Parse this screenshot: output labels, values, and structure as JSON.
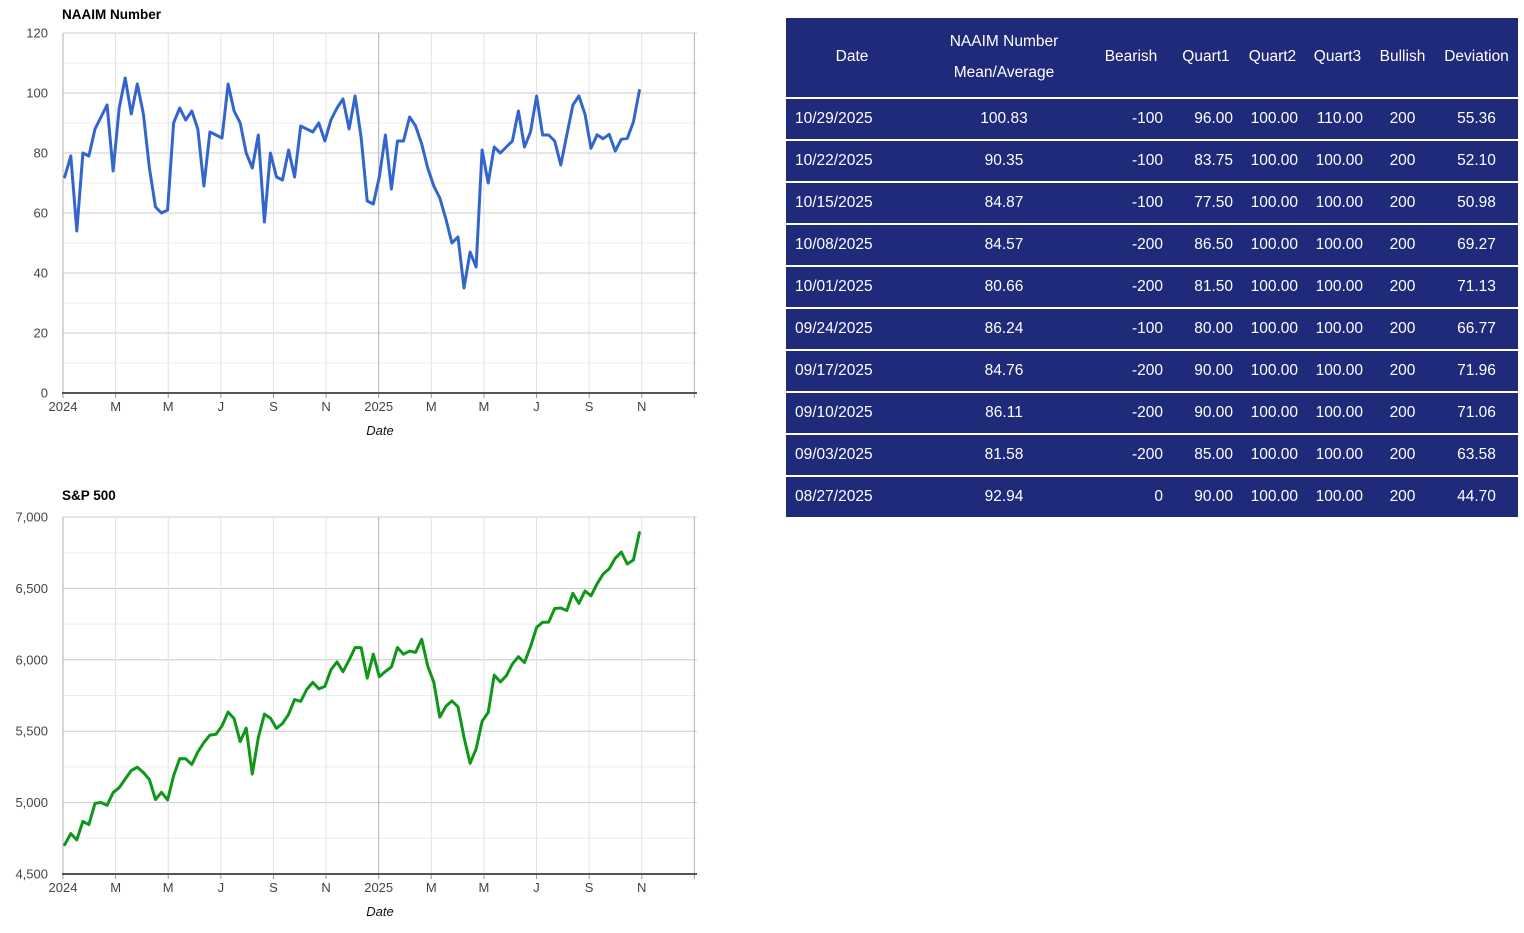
{
  "page": {
    "background": "#ffffff",
    "accent_navy": "#1f2a7a"
  },
  "chart_data": [
    {
      "type": "line",
      "title": "NAAIM Number",
      "xlabel": "Date",
      "line_color": "#3366cc",
      "ylim": [
        0,
        120
      ],
      "y_minor_step": 10,
      "y_ticks": [
        {
          "v": 0,
          "label": "0"
        },
        {
          "v": 20,
          "label": "20"
        },
        {
          "v": 40,
          "label": "40"
        },
        {
          "v": 60,
          "label": "60"
        },
        {
          "v": 80,
          "label": "80"
        },
        {
          "v": 100,
          "label": "100"
        },
        {
          "v": 120,
          "label": "120"
        }
      ],
      "x_ticks": [
        {
          "m": 0,
          "label": "2024"
        },
        {
          "m": 2,
          "label": "M"
        },
        {
          "m": 4,
          "label": "M"
        },
        {
          "m": 6,
          "label": "J"
        },
        {
          "m": 8,
          "label": "S"
        },
        {
          "m": 10,
          "label": "N"
        },
        {
          "m": 12,
          "label": "2025"
        },
        {
          "m": 14,
          "label": "M"
        },
        {
          "m": 16,
          "label": "M"
        },
        {
          "m": 18,
          "label": "J"
        },
        {
          "m": 20,
          "label": "S"
        },
        {
          "m": 22,
          "label": "N"
        }
      ],
      "x_grid_months": [
        0,
        2,
        4,
        6,
        8,
        10,
        12,
        14,
        16,
        18,
        20,
        22,
        24
      ],
      "x_points": "weekly, Jan 2024 through Oct 2025",
      "values": [
        72,
        79,
        54,
        80,
        79,
        88,
        92,
        96,
        74,
        95,
        105,
        93,
        103,
        93,
        75,
        62,
        60,
        61,
        90,
        95,
        91,
        94,
        88,
        69,
        87,
        86,
        85,
        103,
        94,
        90,
        80,
        75,
        86,
        57,
        80,
        72,
        71,
        81,
        72,
        89,
        88,
        87,
        90,
        84,
        91,
        95,
        98,
        88,
        99,
        85,
        64,
        63,
        72,
        86,
        68,
        84,
        84,
        92,
        89,
        83,
        75,
        69,
        65,
        58,
        50,
        52,
        35,
        47,
        42,
        81,
        70,
        82,
        80,
        82,
        84,
        94,
        82,
        87,
        99,
        86,
        86,
        84,
        76,
        86,
        96,
        99,
        92.94,
        81.58,
        86.11,
        84.76,
        86.24,
        80.66,
        84.57,
        84.87,
        90.35,
        100.83
      ]
    },
    {
      "type": "line",
      "title": "S&P 500",
      "xlabel": "Date",
      "line_color": "#109618",
      "ylim": [
        4500,
        7000
      ],
      "y_minor_step": 250,
      "y_ticks": [
        {
          "v": 4500,
          "label": "4,500"
        },
        {
          "v": 5000,
          "label": "5,000"
        },
        {
          "v": 5500,
          "label": "5,500"
        },
        {
          "v": 6000,
          "label": "6,000"
        },
        {
          "v": 6500,
          "label": "6,500"
        },
        {
          "v": 7000,
          "label": "7,000"
        }
      ],
      "x_ticks": [
        {
          "m": 0,
          "label": "2024"
        },
        {
          "m": 2,
          "label": "M"
        },
        {
          "m": 4,
          "label": "M"
        },
        {
          "m": 6,
          "label": "J"
        },
        {
          "m": 8,
          "label": "S"
        },
        {
          "m": 10,
          "label": "N"
        },
        {
          "m": 12,
          "label": "2025"
        },
        {
          "m": 14,
          "label": "M"
        },
        {
          "m": 16,
          "label": "M"
        },
        {
          "m": 18,
          "label": "J"
        },
        {
          "m": 20,
          "label": "S"
        },
        {
          "m": 22,
          "label": "N"
        }
      ],
      "x_grid_months": [
        0,
        2,
        4,
        6,
        8,
        10,
        12,
        14,
        16,
        18,
        20,
        22,
        24
      ],
      "x_points": "weekly, Jan 2024 through Oct 2025",
      "values": [
        4705,
        4783,
        4739,
        4868,
        4846,
        4995,
        5001,
        4981,
        5070,
        5104,
        5165,
        5225,
        5248,
        5211,
        5161,
        5022,
        5072,
        5018,
        5188,
        5308,
        5307,
        5267,
        5354,
        5421,
        5473,
        5478,
        5537,
        5634,
        5588,
        5427,
        5522,
        5200,
        5455,
        5620,
        5592,
        5520,
        5554,
        5618,
        5722,
        5709,
        5792,
        5842,
        5797,
        5814,
        5929,
        5985,
        5917,
        5998,
        6086,
        6084,
        5872,
        6040,
        5882,
        5918,
        5950,
        6086,
        6039,
        6061,
        6052,
        6144,
        5956,
        5843,
        5599,
        5675,
        5712,
        5671,
        5457,
        5275,
        5376,
        5569,
        5631,
        5893,
        5845,
        5888,
        5971,
        6022,
        5981,
        6092,
        6227,
        6263,
        6264,
        6359,
        6363,
        6345,
        6466,
        6395,
        6482,
        6448,
        6532,
        6600,
        6638,
        6711,
        6754,
        6671,
        6699,
        6891
      ]
    }
  ],
  "table": {
    "header_bg": "#1f2a7a",
    "text_color": "#ffffff",
    "columns": [
      "Date",
      "NAAIM Number\nMean/Average",
      "Bearish",
      "Quart1",
      "Quart2",
      "Quart3",
      "Bullish",
      "Deviation"
    ],
    "rows": [
      [
        "10/29/2025",
        "100.83",
        "-100",
        "96.00",
        "100.00",
        "110.00",
        "200",
        "55.36"
      ],
      [
        "10/22/2025",
        "90.35",
        "-100",
        "83.75",
        "100.00",
        "100.00",
        "200",
        "52.10"
      ],
      [
        "10/15/2025",
        "84.87",
        "-100",
        "77.50",
        "100.00",
        "100.00",
        "200",
        "50.98"
      ],
      [
        "10/08/2025",
        "84.57",
        "-200",
        "86.50",
        "100.00",
        "100.00",
        "200",
        "69.27"
      ],
      [
        "10/01/2025",
        "80.66",
        "-200",
        "81.50",
        "100.00",
        "100.00",
        "200",
        "71.13"
      ],
      [
        "09/24/2025",
        "86.24",
        "-100",
        "80.00",
        "100.00",
        "100.00",
        "200",
        "66.77"
      ],
      [
        "09/17/2025",
        "84.76",
        "-200",
        "90.00",
        "100.00",
        "100.00",
        "200",
        "71.96"
      ],
      [
        "09/10/2025",
        "86.11",
        "-200",
        "90.00",
        "100.00",
        "100.00",
        "200",
        "71.06"
      ],
      [
        "09/03/2025",
        "81.58",
        "-200",
        "85.00",
        "100.00",
        "100.00",
        "200",
        "63.58"
      ],
      [
        "08/27/2025",
        "92.94",
        "0",
        "90.00",
        "100.00",
        "100.00",
        "200",
        "44.70"
      ]
    ]
  }
}
